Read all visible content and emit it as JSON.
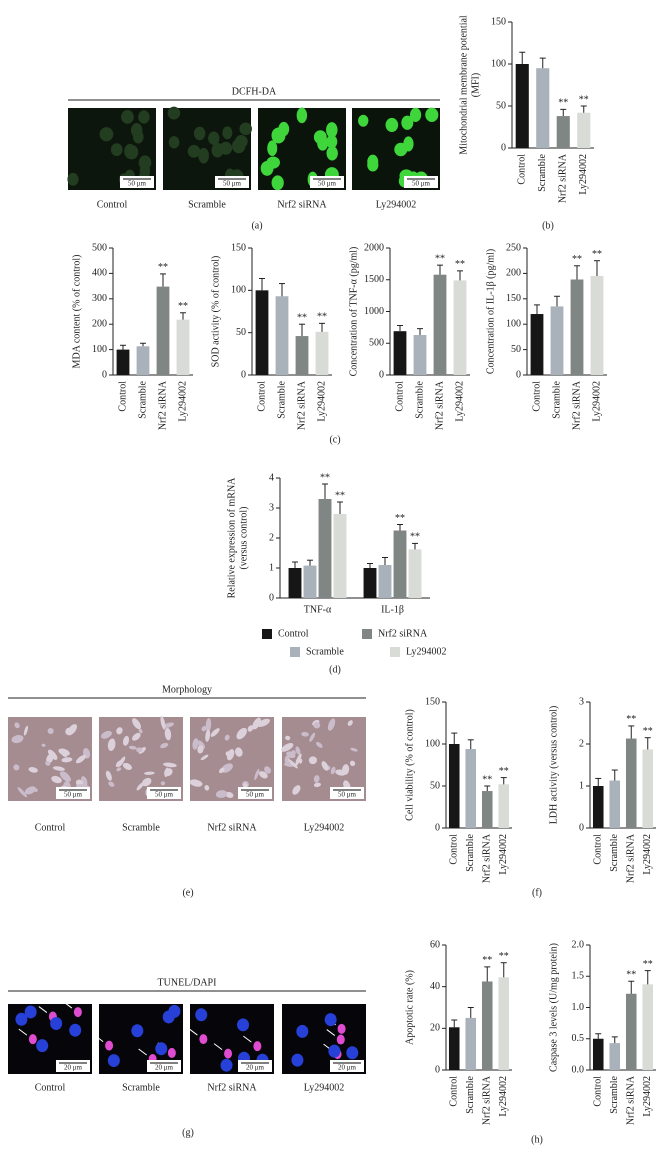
{
  "chart_data": [
    {
      "type": "bar",
      "ylabel": [
        "Mitochondrial membrane potential",
        "(MFI)"
      ],
      "categories": [
        "Control",
        "Scramble",
        "Nrf2 siRNA",
        "Ly294002"
      ],
      "values": [
        100,
        95,
        38,
        42
      ],
      "errors": [
        14,
        12,
        8,
        8
      ],
      "sig": [
        null,
        null,
        "**",
        "**"
      ],
      "colors": [
        "#161616",
        "#a9b1ba",
        "#808684",
        "#d8dbd6"
      ],
      "ylim": [
        0,
        150
      ],
      "yticks": [
        0,
        50,
        100,
        150
      ]
    },
    {
      "type": "bar",
      "ylabel": [
        "MDA content (% of control)"
      ],
      "categories": [
        "Control",
        "Scramble",
        "Nrf2 siRNA",
        "Ly294002"
      ],
      "values": [
        100,
        113,
        348,
        218
      ],
      "errors": [
        17,
        12,
        50,
        27
      ],
      "sig": [
        null,
        null,
        "**",
        "**"
      ],
      "colors": [
        "#161616",
        "#a9b1ba",
        "#808684",
        "#d8dbd6"
      ],
      "ylim": [
        0,
        500
      ],
      "yticks": [
        0,
        100,
        200,
        300,
        400,
        500
      ]
    },
    {
      "type": "bar",
      "ylabel": [
        "SOD activity (% of control)"
      ],
      "categories": [
        "Control",
        "Scramble",
        "Nrf2 siRNA",
        "Ly294002"
      ],
      "values": [
        100,
        93,
        46,
        51
      ],
      "errors": [
        14,
        15,
        14,
        10
      ],
      "sig": [
        null,
        null,
        "**",
        "**"
      ],
      "colors": [
        "#161616",
        "#a9b1ba",
        "#808684",
        "#d8dbd6"
      ],
      "ylim": [
        0,
        150
      ],
      "yticks": [
        0,
        50,
        100,
        150
      ]
    },
    {
      "type": "bar",
      "ylabel": [
        "Concentration of TNF-α (pg/ml)"
      ],
      "categories": [
        "Control",
        "Scramble",
        "Nrf2 siRNA",
        "Ly294002"
      ],
      "values": [
        690,
        630,
        1580,
        1490
      ],
      "errors": [
        90,
        100,
        150,
        150
      ],
      "sig": [
        null,
        null,
        "**",
        "**"
      ],
      "colors": [
        "#161616",
        "#a9b1ba",
        "#808684",
        "#d8dbd6"
      ],
      "ylim": [
        0,
        2000
      ],
      "yticks": [
        0,
        500,
        1000,
        1500,
        2000
      ]
    },
    {
      "type": "bar",
      "ylabel": [
        "Concentration of IL-1β (pg/ml)"
      ],
      "categories": [
        "Control",
        "Scramble",
        "Nrf2 siRNA",
        "Ly294002"
      ],
      "values": [
        120,
        135,
        188,
        195
      ],
      "errors": [
        18,
        20,
        27,
        30
      ],
      "sig": [
        null,
        null,
        "**",
        "**"
      ],
      "colors": [
        "#161616",
        "#a9b1ba",
        "#808684",
        "#d8dbd6"
      ],
      "ylim": [
        0,
        250
      ],
      "yticks": [
        0,
        50,
        100,
        150,
        200,
        250
      ]
    },
    {
      "type": "bar",
      "ylabel": [
        "Relative expression of mRNA",
        "(versus control)"
      ],
      "categories": [
        "TNF-α",
        "IL-1β"
      ],
      "series": [
        {
          "name": "Control",
          "color": "#161616",
          "values": [
            1.0,
            1.0
          ],
          "errors": [
            0.2,
            0.15
          ],
          "sig": [
            null,
            null
          ]
        },
        {
          "name": "Scramble",
          "color": "#a9b1ba",
          "values": [
            1.08,
            1.1
          ],
          "errors": [
            0.18,
            0.25
          ],
          "sig": [
            null,
            null
          ]
        },
        {
          "name": "Nrf2 siRNA",
          "color": "#808684",
          "values": [
            3.3,
            2.25
          ],
          "errors": [
            0.5,
            0.2
          ],
          "sig": [
            "**",
            "**"
          ]
        },
        {
          "name": "Ly294002",
          "color": "#d8dbd6",
          "values": [
            2.8,
            1.62
          ],
          "errors": [
            0.4,
            0.2
          ],
          "sig": [
            "**",
            "**"
          ]
        }
      ],
      "ylim": [
        0,
        4
      ],
      "yticks": [
        0,
        1,
        2,
        3,
        4
      ],
      "legend": "bottom"
    },
    {
      "type": "bar",
      "ylabel": [
        "Cell viability (% of control)"
      ],
      "categories": [
        "Control",
        "Scramble",
        "Nrf2 siRNA",
        "Ly294002"
      ],
      "values": [
        100,
        94,
        44,
        52
      ],
      "errors": [
        13,
        11,
        6,
        8
      ],
      "sig": [
        null,
        null,
        "**",
        "**"
      ],
      "colors": [
        "#161616",
        "#a9b1ba",
        "#808684",
        "#d8dbd6"
      ],
      "ylim": [
        0,
        150
      ],
      "yticks": [
        0,
        50,
        100,
        150
      ]
    },
    {
      "type": "bar",
      "ylabel": [
        "LDH activity (versus control)"
      ],
      "categories": [
        "Control",
        "Scramble",
        "Nrf2 siRNA",
        "Ly294002"
      ],
      "values": [
        1.0,
        1.13,
        2.13,
        1.87
      ],
      "errors": [
        0.18,
        0.25,
        0.3,
        0.28
      ],
      "sig": [
        null,
        null,
        "**",
        "**"
      ],
      "colors": [
        "#161616",
        "#a9b1ba",
        "#808684",
        "#d8dbd6"
      ],
      "ylim": [
        0,
        3
      ],
      "yticks": [
        0,
        1,
        2,
        3
      ]
    },
    {
      "type": "bar",
      "ylabel": [
        "Apoptotic rate (%)"
      ],
      "categories": [
        "Control",
        "Scramble",
        "Nrf2 siRNA",
        "Ly294002"
      ],
      "values": [
        20.5,
        25,
        42.5,
        44.5
      ],
      "errors": [
        3.5,
        5,
        7,
        7
      ],
      "sig": [
        null,
        null,
        "**",
        "**"
      ],
      "colors": [
        "#161616",
        "#a9b1ba",
        "#808684",
        "#d8dbd6"
      ],
      "ylim": [
        0,
        60
      ],
      "yticks": [
        0,
        20,
        40,
        60
      ]
    },
    {
      "type": "bar",
      "ylabel": [
        "Caspase 3 levels (U/mg protein)"
      ],
      "categories": [
        "Control",
        "Scramble",
        "Nrf2 siRNA",
        "Ly294002"
      ],
      "values": [
        0.5,
        0.43,
        1.22,
        1.37
      ],
      "errors": [
        0.08,
        0.1,
        0.2,
        0.22
      ],
      "sig": [
        null,
        null,
        "**",
        "**"
      ],
      "colors": [
        "#161616",
        "#a9b1ba",
        "#808684",
        "#d8dbd6"
      ],
      "ylim": [
        0,
        2
      ],
      "yticks": [
        {
          "value": 0,
          "label": "0.0"
        },
        {
          "value": 0.5,
          "label": "0.5"
        },
        {
          "value": 1,
          "label": "1.0"
        },
        {
          "value": 1.5,
          "label": "1.5"
        },
        {
          "value": 2,
          "label": "2.0"
        }
      ]
    }
  ],
  "image_panels": [
    {
      "title": "DCFH-DA",
      "captions": [
        "Control",
        "Scramble",
        "Nrf2 siRNA",
        "Ly294002"
      ],
      "scale_bar": "50 μm"
    },
    {
      "title": "Morphology",
      "captions": [
        "Control",
        "Scramble",
        "Nrf2 siRNA",
        "Ly294002"
      ],
      "scale_bar": "50 μm"
    },
    {
      "title": "TUNEL/DAPI",
      "captions": [
        "Control",
        "Scramble",
        "Nrf2 siRNA",
        "Ly294002"
      ],
      "scale_bar": "20 μm"
    }
  ],
  "panel_labels": [
    "(a)",
    "(b)",
    "(c)",
    "(d)",
    "(e)",
    "(f)",
    "(g)",
    "(h)"
  ]
}
